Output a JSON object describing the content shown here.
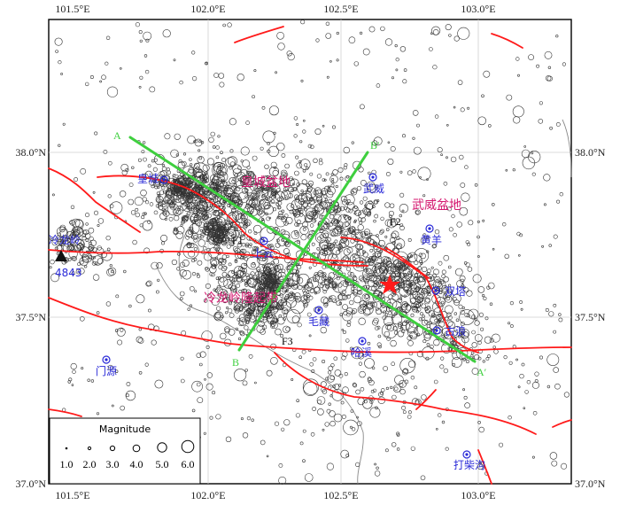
{
  "axes": {
    "x_ticks": [
      "101.5°E",
      "102.0°E",
      "102.5°E",
      "103.0°E"
    ],
    "y_ticks": [
      "38.0°N",
      "37.5°N",
      "37.0°N"
    ]
  },
  "regions": [
    "皇城盆地",
    "武威盆地",
    "冷龙岭隆起带"
  ],
  "towns": [
    "皇城",
    "武威",
    "黄羊",
    "上云",
    "双塔",
    "毛藏",
    "古浪",
    "哈溪",
    "门源",
    "打柴沟",
    "冷龙岭"
  ],
  "station": "4843",
  "faults": [
    "F1",
    "F2",
    "F3"
  ],
  "profiles": {
    "A": "A",
    "A_prime": "A′",
    "B": "B",
    "B_prime": "B′"
  },
  "legend": {
    "title": "Magnitude",
    "values": [
      "1.0",
      "2.0",
      "3.0",
      "4.0",
      "5.0",
      "6.0"
    ]
  },
  "colors": {
    "fault": "#ff1a1a",
    "profile": "#3ecf3e",
    "town": "#2a2ad8",
    "region": "#d4166e",
    "epicenter": "#ff1a1a",
    "grid": "#cfcfcf",
    "event": "#333333"
  }
}
